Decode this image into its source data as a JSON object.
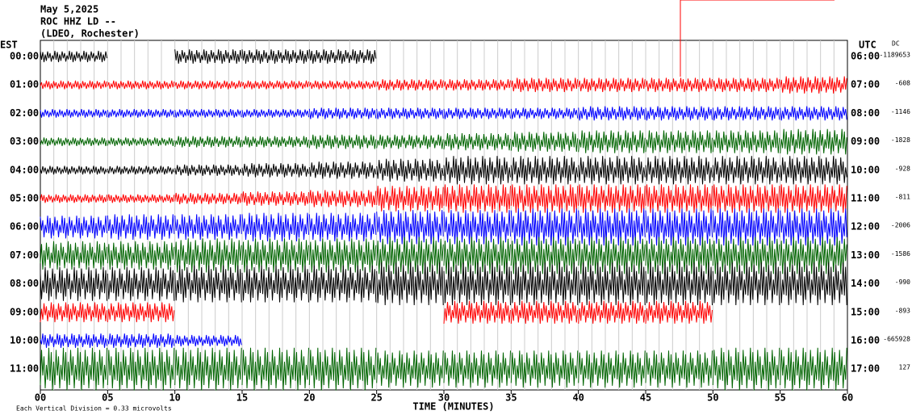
{
  "chart_data": {
    "type": "helicorder",
    "title_lines": [
      "May 5,2025",
      "ROC HHZ LD --",
      "(LDEO, Rochester)"
    ],
    "left_axis_label": "EST",
    "right_axis_label": "UTC",
    "dc_label": "DC",
    "x_label": "TIME (MINUTES)",
    "footer": "Each Vertical Division = 0.33 microvolts",
    "xlim": [
      0,
      60
    ],
    "xticks": [
      {
        "value": 0,
        "label": "00"
      },
      {
        "value": 5,
        "label": "05"
      },
      10,
      15,
      20,
      25,
      30,
      35,
      40,
      45,
      50,
      55,
      60
    ],
    "rows": [
      {
        "est": "00:00",
        "utc": "06:00",
        "dc": "-1189653",
        "color": "#000000",
        "values": [
          0.4,
          null,
          0.5,
          0.5,
          0.5,
          null,
          null,
          null,
          null,
          null,
          null,
          null
        ]
      },
      {
        "est": "01:00",
        "utc": "07:00",
        "dc": "-608",
        "color": "#ff0000",
        "values": [
          0.3,
          0.3,
          0.3,
          0.3,
          0.3,
          0.4,
          0.4,
          0.5,
          0.5,
          0.5,
          0.5,
          0.6
        ]
      },
      {
        "est": "02:00",
        "utc": "08:00",
        "dc": "-1146",
        "color": "#0000ff",
        "values": [
          0.3,
          0.3,
          0.3,
          0.3,
          0.4,
          0.4,
          0.4,
          0.4,
          0.5,
          0.5,
          0.5,
          0.5
        ]
      },
      {
        "est": "03:00",
        "utc": "09:00",
        "dc": "-1828",
        "color": "#006400",
        "values": [
          0.3,
          0.3,
          0.4,
          0.4,
          0.5,
          0.5,
          0.6,
          0.7,
          0.8,
          0.8,
          0.8,
          0.9
        ]
      },
      {
        "est": "04:00",
        "utc": "10:00",
        "dc": "-928",
        "color": "#000000",
        "values": [
          0.3,
          0.3,
          0.4,
          0.5,
          0.6,
          0.8,
          1,
          1,
          1,
          1,
          1,
          1
        ]
      },
      {
        "est": "05:00",
        "utc": "11:00",
        "dc": "-811",
        "color": "#ff0000",
        "values": [
          0.3,
          0.3,
          0.4,
          0.5,
          0.6,
          0.9,
          1,
          1,
          1,
          1,
          1,
          1
        ]
      },
      {
        "est": "06:00",
        "utc": "12:00",
        "dc": "-2006",
        "color": "#0000ff",
        "values": [
          0.8,
          0.9,
          0.9,
          1,
          1,
          1.2,
          1.2,
          1.3,
          1.3,
          1.3,
          1.3,
          1.3
        ]
      },
      {
        "est": "07:00",
        "utc": "13:00",
        "dc": "-1586",
        "color": "#006400",
        "values": [
          1,
          1,
          1.2,
          1.2,
          1.2,
          1.3,
          1.3,
          1.3,
          1.3,
          1.3,
          1.3,
          1.3
        ]
      },
      {
        "est": "08:00",
        "utc": "14:00",
        "dc": "-990",
        "color": "#000000",
        "values": [
          1.2,
          1.2,
          1.3,
          1.3,
          1.3,
          1.5,
          1.5,
          1.5,
          1.5,
          1.5,
          1.5,
          1.5
        ]
      },
      {
        "est": "09:00",
        "utc": "15:00",
        "dc": "-893",
        "color": "#ff0000",
        "values": [
          0.7,
          0.7,
          null,
          null,
          null,
          null,
          0.8,
          0.8,
          0.8,
          0.8,
          null,
          null
        ]
      },
      {
        "est": "10:00",
        "utc": "16:00",
        "dc": "-665928",
        "color": "#0000ff",
        "values": [
          0.5,
          0.5,
          0.4,
          null,
          null,
          null,
          null,
          null,
          null,
          null,
          null,
          null
        ]
      },
      {
        "est": "11:00",
        "utc": "17:00",
        "dc": "127",
        "color": "#006400",
        "values": [
          1.5,
          1.5,
          1.5,
          1.5,
          1.5,
          1.3,
          1.3,
          1.3,
          1.3,
          1.3,
          1.5,
          1.5
        ]
      }
    ]
  }
}
